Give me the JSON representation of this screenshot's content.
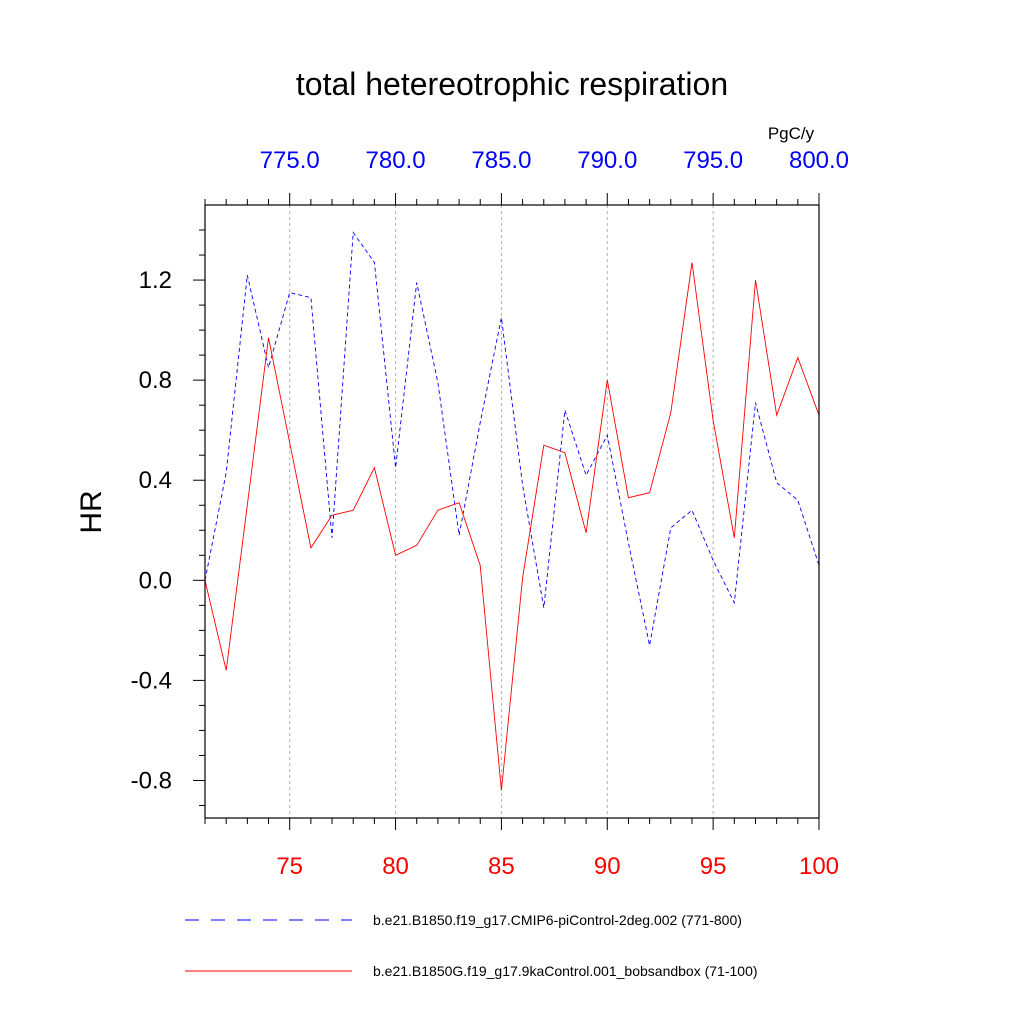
{
  "chart_data": {
    "type": "line",
    "title": "total hetereotrophic respiration",
    "units_label": "PgC/y",
    "ylabel": "HR",
    "ylim": [
      -0.95,
      1.5
    ],
    "yticks": [
      -0.8,
      -0.4,
      0.0,
      0.4,
      0.8,
      1.2
    ],
    "ytick_labels": [
      "-0.8",
      "-0.4",
      "0.0",
      "0.4",
      "0.8",
      "1.2"
    ],
    "bottom_axis": {
      "range": [
        71,
        100
      ],
      "ticks": [
        75,
        80,
        85,
        90,
        95,
        100
      ],
      "tick_labels": [
        "75",
        "80",
        "85",
        "90",
        "95",
        "100"
      ],
      "color": "#ff0000"
    },
    "top_axis": {
      "range": [
        771,
        800
      ],
      "ticks": [
        775,
        780,
        785,
        790,
        795,
        800
      ],
      "tick_labels": [
        "775.0",
        "780.0",
        "785.0",
        "790.0",
        "795.0",
        "800.0"
      ],
      "color": "#0000ff"
    },
    "grid_x": true,
    "legend_position": "bottom",
    "series": [
      {
        "name": "b.e21.B1850.f19_g17.CMIP6-piControl-2deg.002 (771-800)",
        "color": "#0000ff",
        "dash": "dashed",
        "axis": "top",
        "x": [
          771,
          772,
          773,
          774,
          775,
          776,
          777,
          778,
          779,
          780,
          781,
          782,
          783,
          784,
          785,
          786,
          787,
          788,
          789,
          790,
          791,
          792,
          793,
          794,
          795,
          796,
          797,
          798,
          799,
          800
        ],
        "values": [
          0.0,
          0.43,
          1.22,
          0.85,
          1.15,
          1.13,
          0.17,
          1.39,
          1.27,
          0.45,
          1.19,
          0.79,
          0.18,
          0.63,
          1.05,
          0.38,
          -0.11,
          0.68,
          0.42,
          0.58,
          0.15,
          -0.26,
          0.21,
          0.28,
          0.08,
          -0.09,
          0.71,
          0.39,
          0.32,
          0.06
        ]
      },
      {
        "name": "b.e21.B1850G.f19_g17.9kaControl.001_bobsandbox (71-100)",
        "color": "#ff0000",
        "dash": "solid",
        "axis": "bottom",
        "x": [
          71,
          72,
          73,
          74,
          75,
          76,
          77,
          78,
          79,
          80,
          81,
          82,
          83,
          84,
          85,
          86,
          87,
          88,
          89,
          90,
          91,
          92,
          93,
          94,
          95,
          96,
          97,
          98,
          99,
          100
        ],
        "values": [
          0.0,
          -0.36,
          0.3,
          0.97,
          0.55,
          0.13,
          0.26,
          0.28,
          0.45,
          0.1,
          0.14,
          0.28,
          0.31,
          0.06,
          -0.84,
          0.01,
          0.54,
          0.51,
          0.19,
          0.8,
          0.33,
          0.35,
          0.67,
          1.27,
          0.64,
          0.17,
          1.2,
          0.66,
          0.89,
          0.66
        ]
      }
    ]
  }
}
